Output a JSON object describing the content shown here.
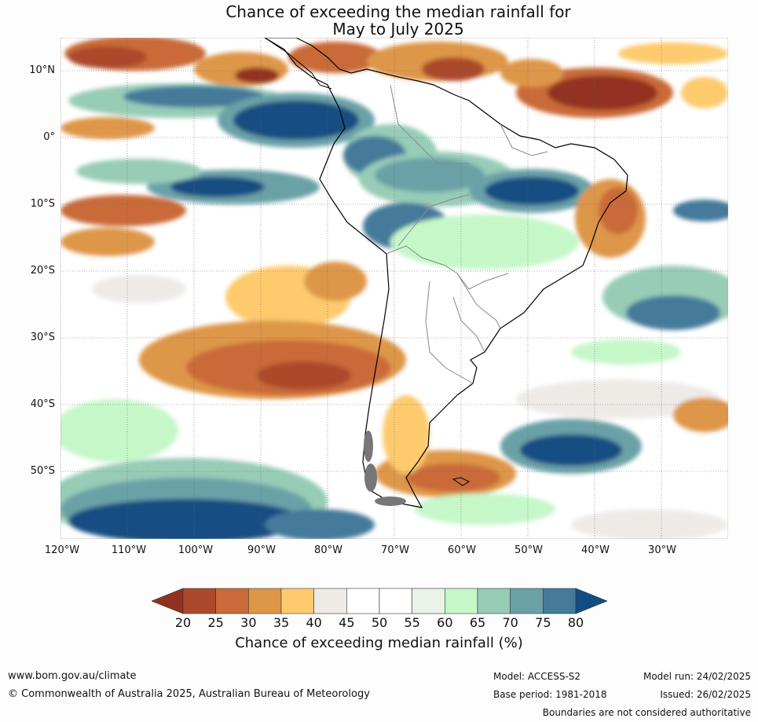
{
  "title": {
    "line1": "Chance of exceeding the median rainfall for",
    "line2": "May to July 2025"
  },
  "map": {
    "latitude_labels": [
      "10°N",
      "0°",
      "10°S",
      "20°S",
      "30°S",
      "40°S",
      "50°S"
    ],
    "longitude_labels": [
      "120°W",
      "110°W",
      "100°W",
      "90°W",
      "80°W",
      "70°W",
      "60°W",
      "50°W",
      "40°W",
      "30°W"
    ],
    "extent": {
      "lon_min": -120,
      "lon_max": -20,
      "lat_min": -60,
      "lat_max": 15
    }
  },
  "legend": {
    "ticks": [
      "20",
      "25",
      "30",
      "35",
      "40",
      "45",
      "50",
      "55",
      "60",
      "65",
      "70",
      "75",
      "80"
    ],
    "label": "Chance of exceeding median rainfall (%)",
    "colors": [
      "#923121",
      "#ab4a2b",
      "#c96a38",
      "#de9648",
      "#fdcb6e",
      "#eeebe7",
      "#ffffff",
      "#ffffff",
      "#e7f4e7",
      "#c6f7c9",
      "#97ccb7",
      "#6aa1a7",
      "#457a9b",
      "#124d82"
    ]
  },
  "footer": {
    "url": "www.bom.gov.au/climate",
    "copyright": "© Commonwealth of Australia 2025, Australian Bureau of Meteorology",
    "model": "Model: ACCESS-S2",
    "base_period": "Base period: 1981-2018",
    "model_run": "Model run: 24/02/2025",
    "issued": "Issued: 26/02/2025",
    "disclaimer": "Boundaries are not considered authoritative"
  }
}
